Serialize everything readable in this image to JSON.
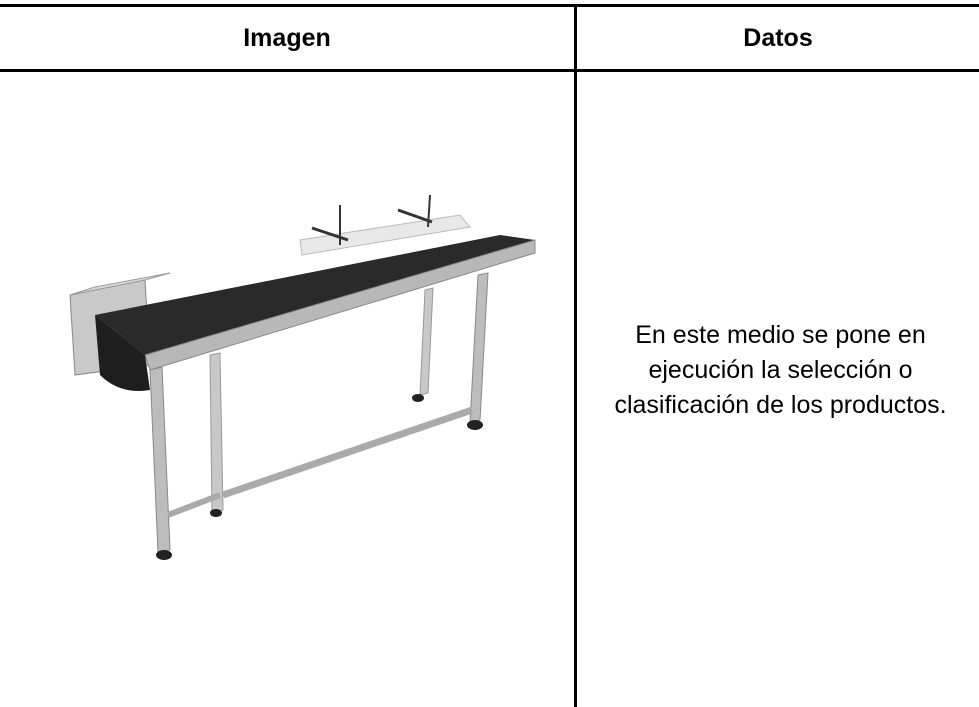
{
  "table": {
    "header": [
      "Imagen",
      "Datos"
    ],
    "rows": [
      [
        null,
        "En este medio se pone en ejecución la selección o clasificación de los productos."
      ]
    ]
  }
}
